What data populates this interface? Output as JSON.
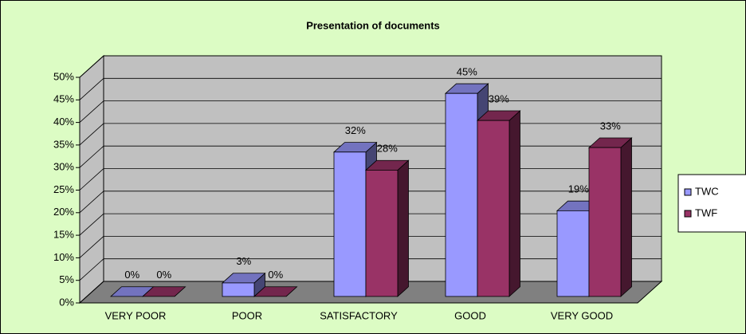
{
  "chart_data": {
    "type": "bar3d",
    "title": "Presentation of documents",
    "categories": [
      "VERY POOR",
      "POOR",
      "SATISFACTORY",
      "GOOD",
      "VERY GOOD"
    ],
    "series": [
      {
        "name": "TWC",
        "color": "#9999ff",
        "values": [
          0,
          3,
          32,
          45,
          19
        ],
        "value_labels": [
          "0%",
          "3%",
          "32%",
          "45%",
          "19%"
        ]
      },
      {
        "name": "TWF",
        "color": "#993366",
        "values": [
          0,
          0,
          28,
          39,
          33
        ],
        "value_labels": [
          "0%",
          "0%",
          "28%",
          "39%",
          "33%"
        ]
      }
    ],
    "ylim": [
      0,
      50
    ],
    "yticks": [
      {
        "value": 0,
        "label": "0%"
      },
      {
        "value": 5,
        "label": "5%"
      },
      {
        "value": 10,
        "label": "10%"
      },
      {
        "value": 15,
        "label": "15%"
      },
      {
        "value": 20,
        "label": "20%"
      },
      {
        "value": 25,
        "label": "25%"
      },
      {
        "value": 30,
        "label": "30%"
      },
      {
        "value": 35,
        "label": "35%"
      },
      {
        "value": 40,
        "label": "40%"
      },
      {
        "value": 45,
        "label": "45%"
      },
      {
        "value": 50,
        "label": "50%"
      }
    ],
    "grid": true,
    "legend": "right"
  }
}
